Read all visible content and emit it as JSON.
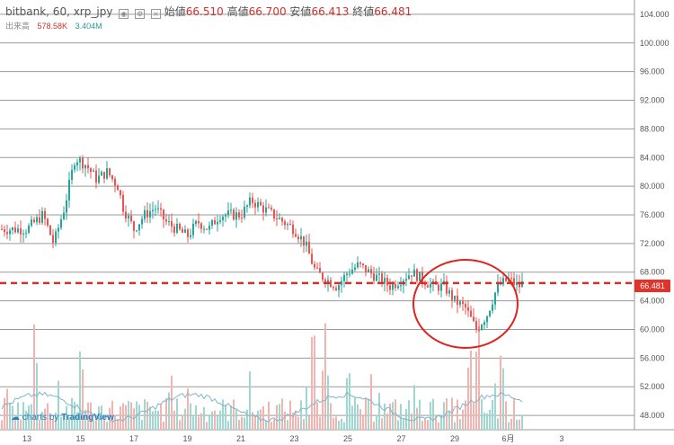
{
  "header": {
    "symbol": "bitbank, 60, xrp_jpy",
    "open_label": "始値",
    "open": "66.510",
    "high_label": "高値",
    "high": "66.700",
    "low_label": "安値",
    "low": "66.413",
    "close_label": "終値",
    "close": "66.481"
  },
  "volume": {
    "label": "出来高",
    "v1": "578.58K",
    "v2": "3.404M"
  },
  "branding": {
    "prefix": "charts by",
    "brand": "TradingView"
  },
  "current_price": "66.481",
  "colors": {
    "up": "#2a9d8f",
    "down": "#d0312d",
    "dashed": "#d0312d",
    "circle": "#e0231e",
    "grid": "#9a9a9a"
  },
  "chart_data": {
    "type": "candlestick",
    "y_axis": {
      "min": 46,
      "max": 106,
      "ticks": [
        48,
        52,
        56,
        60,
        64,
        68,
        72,
        76,
        80,
        84,
        88,
        92,
        96,
        100,
        104
      ],
      "tick_labels": [
        "48.000",
        "52.000",
        "56.000",
        "60.000",
        "64.000",
        "68.000",
        "72.000",
        "76.000",
        "80.000",
        "84.000",
        "88.000",
        "92.000",
        "96.000",
        "100.000",
        "104.000"
      ]
    },
    "x_labels": [
      {
        "label": "13",
        "pos": 0.0
      },
      {
        "label": "15",
        "pos": 1.0
      },
      {
        "label": "17",
        "pos": 2.0
      },
      {
        "label": "19",
        "pos": 3.0
      },
      {
        "label": "21",
        "pos": 4.0
      },
      {
        "label": "23",
        "pos": 5.0
      },
      {
        "label": "25",
        "pos": 6.0
      },
      {
        "label": "27",
        "pos": 7.0
      },
      {
        "label": "29",
        "pos": 8.0
      },
      {
        "label": "6月",
        "pos": 9.0
      },
      {
        "label": "3",
        "pos": 10.0
      }
    ],
    "price_path": [
      [
        0,
        74
      ],
      [
        0.3,
        76
      ],
      [
        0.5,
        72
      ],
      [
        0.7,
        77
      ],
      [
        0.9,
        84
      ],
      [
        1.1,
        83
      ],
      [
        1.3,
        81
      ],
      [
        1.5,
        82
      ],
      [
        1.7,
        80
      ],
      [
        1.8,
        77
      ],
      [
        2.0,
        74
      ],
      [
        2.2,
        76
      ],
      [
        2.4,
        77
      ],
      [
        2.6,
        75
      ],
      [
        2.8,
        74
      ],
      [
        3.0,
        73
      ],
      [
        3.2,
        75
      ],
      [
        3.4,
        74
      ],
      [
        3.6,
        76
      ],
      [
        3.8,
        76
      ],
      [
        4.0,
        76
      ],
      [
        4.2,
        78
      ],
      [
        4.4,
        77
      ],
      [
        4.6,
        76
      ],
      [
        4.8,
        75
      ],
      [
        5.0,
        74
      ],
      [
        5.2,
        72
      ],
      [
        5.4,
        68
      ],
      [
        5.6,
        67
      ],
      [
        5.8,
        66
      ],
      [
        6.0,
        68
      ],
      [
        6.2,
        69
      ],
      [
        6.4,
        68
      ],
      [
        6.6,
        67
      ],
      [
        6.8,
        66
      ],
      [
        7.0,
        67
      ],
      [
        7.2,
        68
      ],
      [
        7.4,
        67
      ],
      [
        7.6,
        66
      ],
      [
        7.8,
        66
      ],
      [
        8.0,
        64
      ],
      [
        8.2,
        63
      ],
      [
        8.4,
        60
      ],
      [
        8.6,
        62
      ],
      [
        8.8,
        66
      ],
      [
        9.0,
        67
      ],
      [
        9.2,
        66
      ],
      [
        9.35,
        67
      ]
    ],
    "current_price": 66.481,
    "annotation": {
      "type": "circle",
      "around": "late-period dip and recovery"
    }
  }
}
